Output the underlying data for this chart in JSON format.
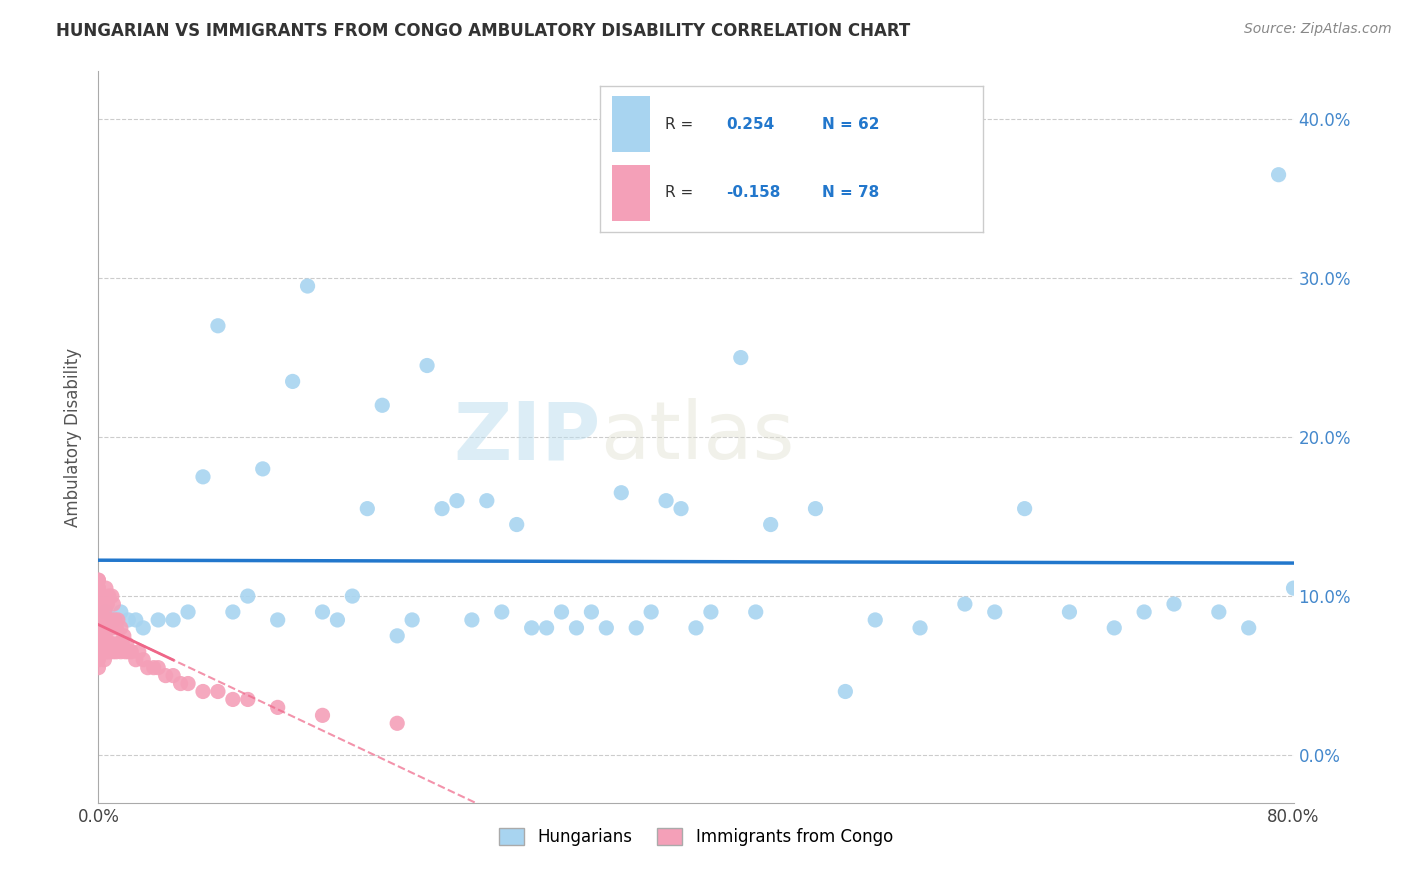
{
  "title": "HUNGARIAN VS IMMIGRANTS FROM CONGO AMBULATORY DISABILITY CORRELATION CHART",
  "source": "Source: ZipAtlas.com",
  "ylabel": "Ambulatory Disability",
  "xlim": [
    0.0,
    0.8
  ],
  "ylim": [
    -0.03,
    0.43
  ],
  "xticks": [
    0.0,
    0.1,
    0.2,
    0.3,
    0.4,
    0.5,
    0.6,
    0.7,
    0.8
  ],
  "yticks": [
    0.0,
    0.1,
    0.2,
    0.3,
    0.4
  ],
  "ytick_labels_right": [
    "0.0%",
    "10.0%",
    "20.0%",
    "30.0%",
    "40.0%"
  ],
  "xtick_labels": [
    "0.0%",
    "",
    "",
    "",
    "",
    "",
    "",
    "",
    "80.0%"
  ],
  "R_hungarian": 0.254,
  "N_hungarian": 62,
  "R_congo": -0.158,
  "N_congo": 78,
  "color_hungarian": "#A8D4F0",
  "color_congo": "#F4A0B8",
  "line_color_hungarian": "#2277CC",
  "line_color_congo": "#EE6688",
  "background_color": "#FFFFFF",
  "grid_color": "#CCCCCC",
  "legend_label_hungarian": "Hungarians",
  "legend_label_congo": "Immigrants from Congo",
  "hungarian_x": [
    0.005,
    0.01,
    0.015,
    0.02,
    0.025,
    0.03,
    0.04,
    0.05,
    0.06,
    0.07,
    0.08,
    0.09,
    0.1,
    0.11,
    0.12,
    0.13,
    0.14,
    0.15,
    0.16,
    0.17,
    0.18,
    0.19,
    0.2,
    0.21,
    0.22,
    0.23,
    0.24,
    0.25,
    0.26,
    0.27,
    0.28,
    0.29,
    0.3,
    0.31,
    0.32,
    0.33,
    0.34,
    0.35,
    0.36,
    0.37,
    0.38,
    0.39,
    0.4,
    0.41,
    0.43,
    0.44,
    0.45,
    0.48,
    0.5,
    0.52,
    0.55,
    0.58,
    0.6,
    0.62,
    0.65,
    0.68,
    0.7,
    0.72,
    0.75,
    0.77,
    0.79,
    0.8
  ],
  "hungarian_y": [
    0.09,
    0.085,
    0.09,
    0.085,
    0.085,
    0.08,
    0.085,
    0.085,
    0.09,
    0.175,
    0.27,
    0.09,
    0.1,
    0.18,
    0.085,
    0.235,
    0.295,
    0.09,
    0.085,
    0.1,
    0.155,
    0.22,
    0.075,
    0.085,
    0.245,
    0.155,
    0.16,
    0.085,
    0.16,
    0.09,
    0.145,
    0.08,
    0.08,
    0.09,
    0.08,
    0.09,
    0.08,
    0.165,
    0.08,
    0.09,
    0.16,
    0.155,
    0.08,
    0.09,
    0.25,
    0.09,
    0.145,
    0.155,
    0.04,
    0.085,
    0.08,
    0.095,
    0.09,
    0.155,
    0.09,
    0.08,
    0.09,
    0.095,
    0.09,
    0.08,
    0.365,
    0.105
  ],
  "congo_x": [
    0.0,
    0.0,
    0.0,
    0.0,
    0.0,
    0.0,
    0.0,
    0.0,
    0.0,
    0.0,
    0.0,
    0.0,
    0.0,
    0.0,
    0.0,
    0.0,
    0.0,
    0.0,
    0.0,
    0.0,
    0.002,
    0.002,
    0.003,
    0.003,
    0.004,
    0.004,
    0.004,
    0.005,
    0.005,
    0.005,
    0.005,
    0.005,
    0.006,
    0.006,
    0.006,
    0.007,
    0.007,
    0.007,
    0.008,
    0.008,
    0.009,
    0.009,
    0.009,
    0.01,
    0.01,
    0.01,
    0.011,
    0.011,
    0.012,
    0.012,
    0.013,
    0.013,
    0.014,
    0.015,
    0.015,
    0.016,
    0.017,
    0.018,
    0.019,
    0.02,
    0.022,
    0.025,
    0.027,
    0.03,
    0.033,
    0.037,
    0.04,
    0.045,
    0.05,
    0.055,
    0.06,
    0.07,
    0.08,
    0.09,
    0.1,
    0.12,
    0.15,
    0.2
  ],
  "congo_y": [
    0.055,
    0.06,
    0.065,
    0.07,
    0.075,
    0.08,
    0.08,
    0.085,
    0.085,
    0.09,
    0.09,
    0.09,
    0.095,
    0.1,
    0.1,
    0.1,
    0.105,
    0.105,
    0.11,
    0.11,
    0.065,
    0.09,
    0.07,
    0.085,
    0.06,
    0.075,
    0.09,
    0.065,
    0.075,
    0.085,
    0.095,
    0.105,
    0.065,
    0.08,
    0.095,
    0.07,
    0.085,
    0.1,
    0.065,
    0.08,
    0.07,
    0.085,
    0.1,
    0.065,
    0.08,
    0.095,
    0.07,
    0.085,
    0.065,
    0.08,
    0.07,
    0.085,
    0.07,
    0.065,
    0.08,
    0.07,
    0.075,
    0.065,
    0.07,
    0.065,
    0.065,
    0.06,
    0.065,
    0.06,
    0.055,
    0.055,
    0.055,
    0.05,
    0.05,
    0.045,
    0.045,
    0.04,
    0.04,
    0.035,
    0.035,
    0.03,
    0.025,
    0.02
  ]
}
